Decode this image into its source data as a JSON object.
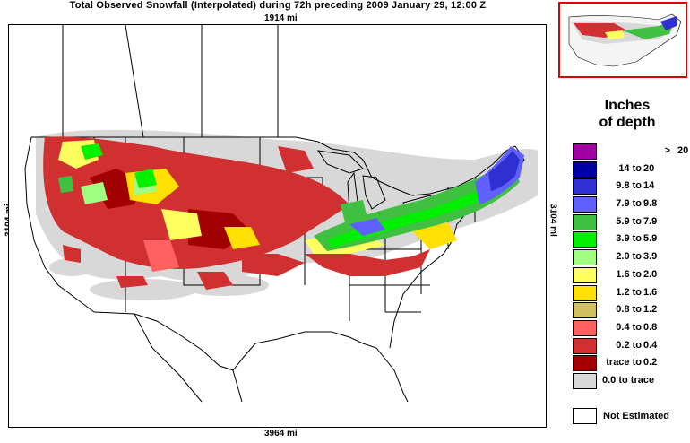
{
  "title": "Total Observed Snowfall (Interpolated) during 72h preceding 2009 January 29, 12:00 Z",
  "distance_top": "1914 mi",
  "distance_bottom": "3964 mi",
  "distance_left": "3104 mi",
  "distance_right": "3104 mi",
  "legend": {
    "title_line1": "Inches",
    "title_line2": "of depth",
    "items": [
      {
        "lo": ">",
        "hi": "20",
        "color": "#a000a0"
      },
      {
        "lo": "14 to",
        "hi": "20",
        "color": "#0000a0"
      },
      {
        "lo": "9.8 to",
        "hi": "14",
        "color": "#3030d0"
      },
      {
        "lo": "7.9 to",
        "hi": "9.8",
        "color": "#6060ff"
      },
      {
        "lo": "5.9 to",
        "hi": "7.9",
        "color": "#40c040"
      },
      {
        "lo": "3.9 to",
        "hi": "5.9",
        "color": "#00f000"
      },
      {
        "lo": "2.0 to",
        "hi": "3.9",
        "color": "#a0ff80"
      },
      {
        "lo": "1.6 to",
        "hi": "2.0",
        "color": "#ffff60"
      },
      {
        "lo": "1.2 to",
        "hi": "1.6",
        "color": "#ffe000"
      },
      {
        "lo": "0.8 to",
        "hi": "1.2",
        "color": "#d0c060"
      },
      {
        "lo": "0.4 to",
        "hi": "0.8",
        "color": "#ff6060"
      },
      {
        "lo": "0.2 to",
        "hi": "0.4",
        "color": "#d03030"
      },
      {
        "lo": "trace to",
        "hi": "0.2",
        "color": "#a00000"
      },
      {
        "lo": "0.0 to trace",
        "hi": "",
        "color": "#d8d8d8"
      }
    ],
    "not_estimated_label": "Not Estimated"
  }
}
